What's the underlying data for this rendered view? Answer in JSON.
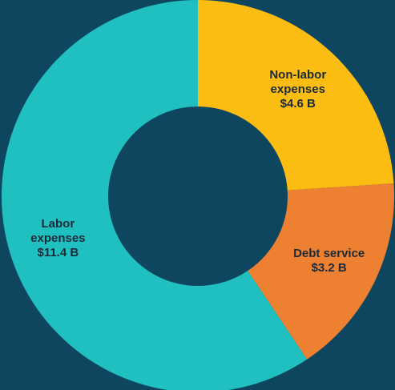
{
  "chart_data": {
    "type": "donut",
    "categories": [
      "Non-labor expenses",
      "Debt service",
      "Labor expenses"
    ],
    "values": [
      4.6,
      3.2,
      11.4
    ],
    "value_labels": [
      "$4.6 B",
      "$3.2 B",
      "$11.4 B"
    ],
    "colors": [
      "#fbbd12",
      "#ee8032",
      "#21c0c0"
    ]
  }
}
